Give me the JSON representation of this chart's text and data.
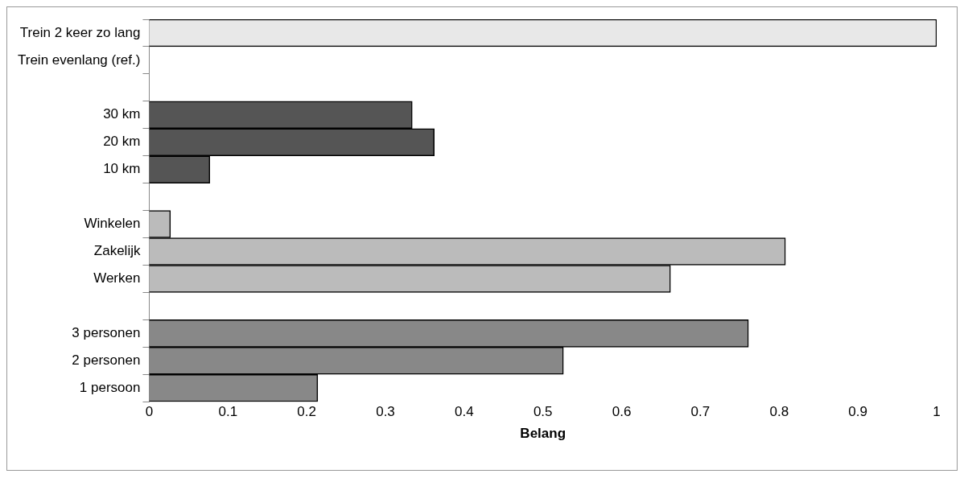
{
  "chart_data": {
    "type": "bar",
    "orientation": "horizontal",
    "xlabel": "Belang",
    "categories": [
      "Trein 2 keer zo lang",
      "Trein evenlang (ref.)",
      null,
      "30 km",
      "20 km",
      "10 km",
      null,
      "Winkelen",
      "Zakelijk",
      "Werken",
      null,
      "3 personen",
      "2 personen",
      "1 persoon"
    ],
    "values": [
      1.0,
      0,
      null,
      0.334,
      0.362,
      0.077,
      null,
      0.027,
      0.808,
      0.662,
      null,
      0.761,
      0.526,
      0.214
    ],
    "colors": [
      "#e8e8e8",
      "#e8e8e8",
      null,
      "#555555",
      "#555555",
      "#555555",
      null,
      "#bbbbbb",
      "#bbbbbb",
      "#bbbbbb",
      null,
      "#888888",
      "#888888",
      "#888888"
    ],
    "xlim": [
      0,
      1
    ],
    "xticks": [
      0,
      0.1,
      0.2,
      0.3,
      0.4,
      0.5,
      0.6,
      0.7,
      0.8,
      0.9,
      1
    ],
    "grid": false,
    "legend": false
  }
}
